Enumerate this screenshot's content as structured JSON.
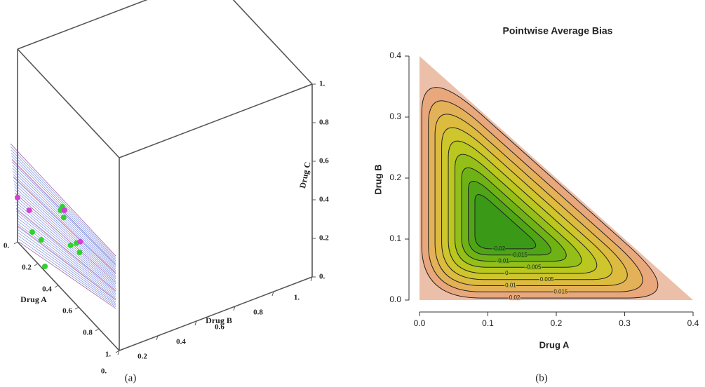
{
  "chart_data": [
    {
      "type": "scatter3d",
      "xlabel": "Drug A",
      "ylabel": "Drug B",
      "zlabel": "Drug C",
      "caption": "(a)",
      "xlim": [
        0,
        1
      ],
      "ylim": [
        0,
        1
      ],
      "zlim": [
        0,
        1
      ],
      "xticks": [
        {
          "value": 0,
          "label": "0."
        },
        0.2,
        0.4,
        0.6,
        0.8,
        {
          "value": 1,
          "label": "1."
        }
      ],
      "yticks": [
        {
          "value": 0,
          "label": "0."
        },
        0.2,
        0.4,
        0.6,
        0.8,
        {
          "value": 1,
          "label": "1."
        }
      ],
      "zticks": [
        {
          "value": 0,
          "label": "0."
        },
        0.2,
        0.4,
        0.6,
        0.8,
        {
          "value": 1,
          "label": "1."
        }
      ],
      "series": [
        {
          "color": "#2fd12f",
          "x": [
            0.05,
            0.1,
            0.1,
            0.15,
            0.2,
            0.2,
            0.25,
            0.25,
            0.08
          ],
          "y": [
            0.05,
            0.07,
            0.17,
            0.16,
            0.17,
            0.2,
            0.19,
            0.01,
            0.19
          ],
          "z": [
            0.06,
            0.04,
            0.155,
            0.15,
            0.03,
            0.03,
            0.014,
            0.01,
            0.155
          ]
        },
        {
          "color": "#d43fd4",
          "x": [
            0,
            0.02,
            0.12,
            0.2
          ],
          "y": [
            0,
            0.05,
            0.18,
            0.22
          ],
          "z": [
            0.23,
            0.156,
            0.163,
            0.03
          ]
        }
      ]
    },
    {
      "type": "contour",
      "title": "Pointwise Average Bias",
      "xlabel": "Drug A",
      "ylabel": "Drug B",
      "caption": "(b)",
      "xlim": [
        0,
        0.4
      ],
      "ylim": [
        0,
        0.4
      ],
      "xticks": [
        {
          "value": 0,
          "label": "0.0"
        },
        0.1,
        0.2,
        0.3,
        0.4
      ],
      "yticks": [
        {
          "value": 0,
          "label": "0.0"
        },
        0.1,
        0.2,
        0.3,
        0.4
      ],
      "levels": [
        0.02,
        0.015,
        0.01,
        0.005,
        0,
        -0.005,
        -0.01,
        -0.015,
        -0.02
      ],
      "colors": [
        "#e9a77c",
        "#e3b157",
        "#ddbb3f",
        "#cfc52c",
        "#b9c71f",
        "#94bf18",
        "#6fb216",
        "#4fa516",
        "#3a9a18"
      ]
    }
  ]
}
